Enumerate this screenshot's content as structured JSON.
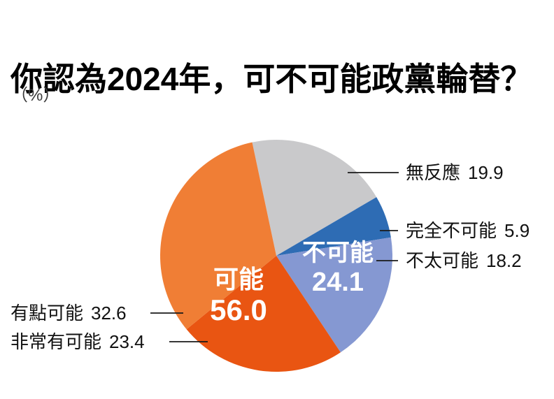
{
  "title": "你認為2024年，可不可能政黨輪替？",
  "unit_label": "（%）",
  "colors": {
    "gray": "#c9c9cb",
    "dark_blue": "#2e6cb4",
    "light_blue": "#8598d2",
    "dark_orange": "#e95512",
    "light_orange": "#f07e35",
    "leader_line": "#1a1a1a",
    "inner_label_text": "#ffffff"
  },
  "chart_data": {
    "type": "pie",
    "title": "你認為2024年，可不可能政黨輪替？",
    "unit": "%",
    "start_angle_deg": -12,
    "direction": "clockwise",
    "legend_position": "callouts",
    "slices": [
      {
        "key": "no-response",
        "label": "無反應",
        "value": "19.9",
        "color": "#c9c9cb"
      },
      {
        "key": "completely-impossible",
        "label": "完全不可能",
        "value": "5.9",
        "color": "#2e6cb4"
      },
      {
        "key": "not-very-possible",
        "label": "不太可能",
        "value": "18.2",
        "color": "#8598d2"
      },
      {
        "key": "very-possible",
        "label": "非常有可能",
        "value": "23.4",
        "color": "#e95512"
      },
      {
        "key": "somewhat-possible",
        "label": "有點可能",
        "value": "32.6",
        "color": "#f07e35"
      }
    ],
    "group_labels": [
      {
        "key": "impossible",
        "label": "不可能",
        "value": "24.1"
      },
      {
        "key": "possible",
        "label": "可能",
        "value": "56.0"
      }
    ]
  }
}
